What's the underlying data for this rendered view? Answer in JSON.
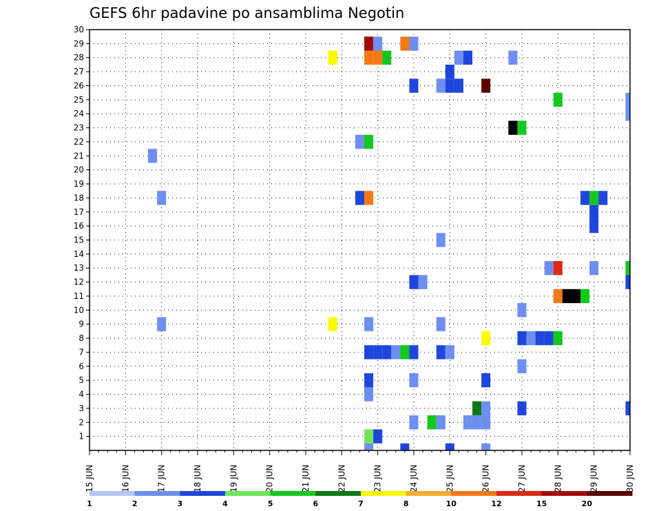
{
  "chart_data": {
    "type": "heatmap",
    "title": "GEFS 6hr padavine po ansamblima Negotin",
    "xlabel": "",
    "ylabel": "",
    "x_ticks": [
      "15 JUN",
      "16 JUN",
      "17 JUN",
      "18 JUN",
      "19 JUN",
      "20 JUN",
      "21 JUN",
      "22 JUN",
      "23 JUN",
      "24 JUN",
      "25 JUN",
      "26 JUN",
      "27 JUN",
      "28 JUN",
      "29 JUN",
      "30 JUN"
    ],
    "y_ticks": [
      "1",
      "2",
      "3",
      "4",
      "5",
      "6",
      "7",
      "8",
      "9",
      "10",
      "11",
      "12",
      "13",
      "14",
      "15",
      "16",
      "17",
      "18",
      "19",
      "20",
      "21",
      "22",
      "23",
      "24",
      "25",
      "26",
      "27",
      "28",
      "29",
      "30"
    ],
    "xlim": [
      0,
      60
    ],
    "ylim": [
      0,
      30
    ],
    "x_unit": "6-hour steps from 15 JUN",
    "grid": true,
    "legend_placement": "bottom",
    "legend_labels": [
      "1",
      "2",
      "3",
      "4",
      "5",
      "6",
      "7",
      "8",
      "10",
      "12",
      "15",
      "20"
    ],
    "level_colors": [
      "#b4c8f5",
      "#6e8ff0",
      "#1e46dc",
      "#6ee65a",
      "#14c81e",
      "#0a7814",
      "#fafa00",
      "#ffaa32",
      "#f57814",
      "#dc2814",
      "#a00a0a",
      "#5a0000"
    ],
    "color_index_key": "cells[i] = [x_step, ensemble_member, color_index]",
    "cells": [
      [
        31,
        0,
        1
      ],
      [
        35,
        0,
        2
      ],
      [
        40,
        0,
        2
      ],
      [
        44,
        0,
        1
      ],
      [
        31,
        1,
        3
      ],
      [
        32,
        1,
        2
      ],
      [
        36,
        2,
        1
      ],
      [
        38,
        2,
        4
      ],
      [
        39,
        2,
        1
      ],
      [
        42,
        2,
        1
      ],
      [
        43,
        2,
        1
      ],
      [
        44,
        2,
        1
      ],
      [
        43,
        3,
        5
      ],
      [
        44,
        3,
        1
      ],
      [
        48,
        3,
        2
      ],
      [
        60,
        3,
        2
      ],
      [
        31,
        4,
        1
      ],
      [
        31,
        5,
        2
      ],
      [
        36,
        5,
        1
      ],
      [
        44,
        5,
        2
      ],
      [
        48,
        6,
        1
      ],
      [
        31,
        7,
        2
      ],
      [
        32,
        7,
        2
      ],
      [
        33,
        7,
        2
      ],
      [
        34,
        7,
        1
      ],
      [
        35,
        7,
        4
      ],
      [
        36,
        7,
        2
      ],
      [
        39,
        7,
        2
      ],
      [
        40,
        7,
        1
      ],
      [
        44,
        8,
        6
      ],
      [
        48,
        8,
        2
      ],
      [
        49,
        8,
        1
      ],
      [
        50,
        8,
        2
      ],
      [
        51,
        8,
        2
      ],
      [
        52,
        8,
        4
      ],
      [
        8,
        9,
        1
      ],
      [
        27,
        9,
        6
      ],
      [
        31,
        9,
        1
      ],
      [
        39,
        9,
        1
      ],
      [
        48,
        10,
        1
      ],
      [
        52,
        11,
        8
      ],
      [
        53,
        11,
        12
      ],
      [
        54,
        11,
        12
      ],
      [
        55,
        11,
        4
      ],
      [
        36,
        12,
        2
      ],
      [
        37,
        12,
        1
      ],
      [
        60,
        12,
        2
      ],
      [
        51,
        13,
        1
      ],
      [
        52,
        13,
        9
      ],
      [
        56,
        13,
        1
      ],
      [
        60,
        13,
        4
      ],
      [
        39,
        15,
        1
      ],
      [
        56,
        16,
        2
      ],
      [
        56,
        17,
        2
      ],
      [
        8,
        18,
        1
      ],
      [
        30,
        18,
        2
      ],
      [
        31,
        18,
        8
      ],
      [
        55,
        18,
        2
      ],
      [
        56,
        18,
        4
      ],
      [
        57,
        18,
        2
      ],
      [
        7,
        21,
        1
      ],
      [
        30,
        22,
        1
      ],
      [
        31,
        22,
        4
      ],
      [
        47,
        23,
        12
      ],
      [
        48,
        23,
        4
      ],
      [
        60,
        24,
        1
      ],
      [
        52,
        25,
        4
      ],
      [
        60,
        25,
        1
      ],
      [
        36,
        26,
        2
      ],
      [
        39,
        26,
        1
      ],
      [
        40,
        26,
        2
      ],
      [
        41,
        26,
        2
      ],
      [
        44,
        26,
        11
      ],
      [
        40,
        27,
        2
      ],
      [
        27,
        28,
        6
      ],
      [
        31,
        28,
        8
      ],
      [
        32,
        28,
        8
      ],
      [
        33,
        28,
        4
      ],
      [
        41,
        28,
        1
      ],
      [
        42,
        28,
        2
      ],
      [
        47,
        28,
        1
      ],
      [
        31,
        29,
        10
      ],
      [
        32,
        29,
        1
      ],
      [
        35,
        29,
        8
      ],
      [
        36,
        29,
        1
      ]
    ]
  }
}
